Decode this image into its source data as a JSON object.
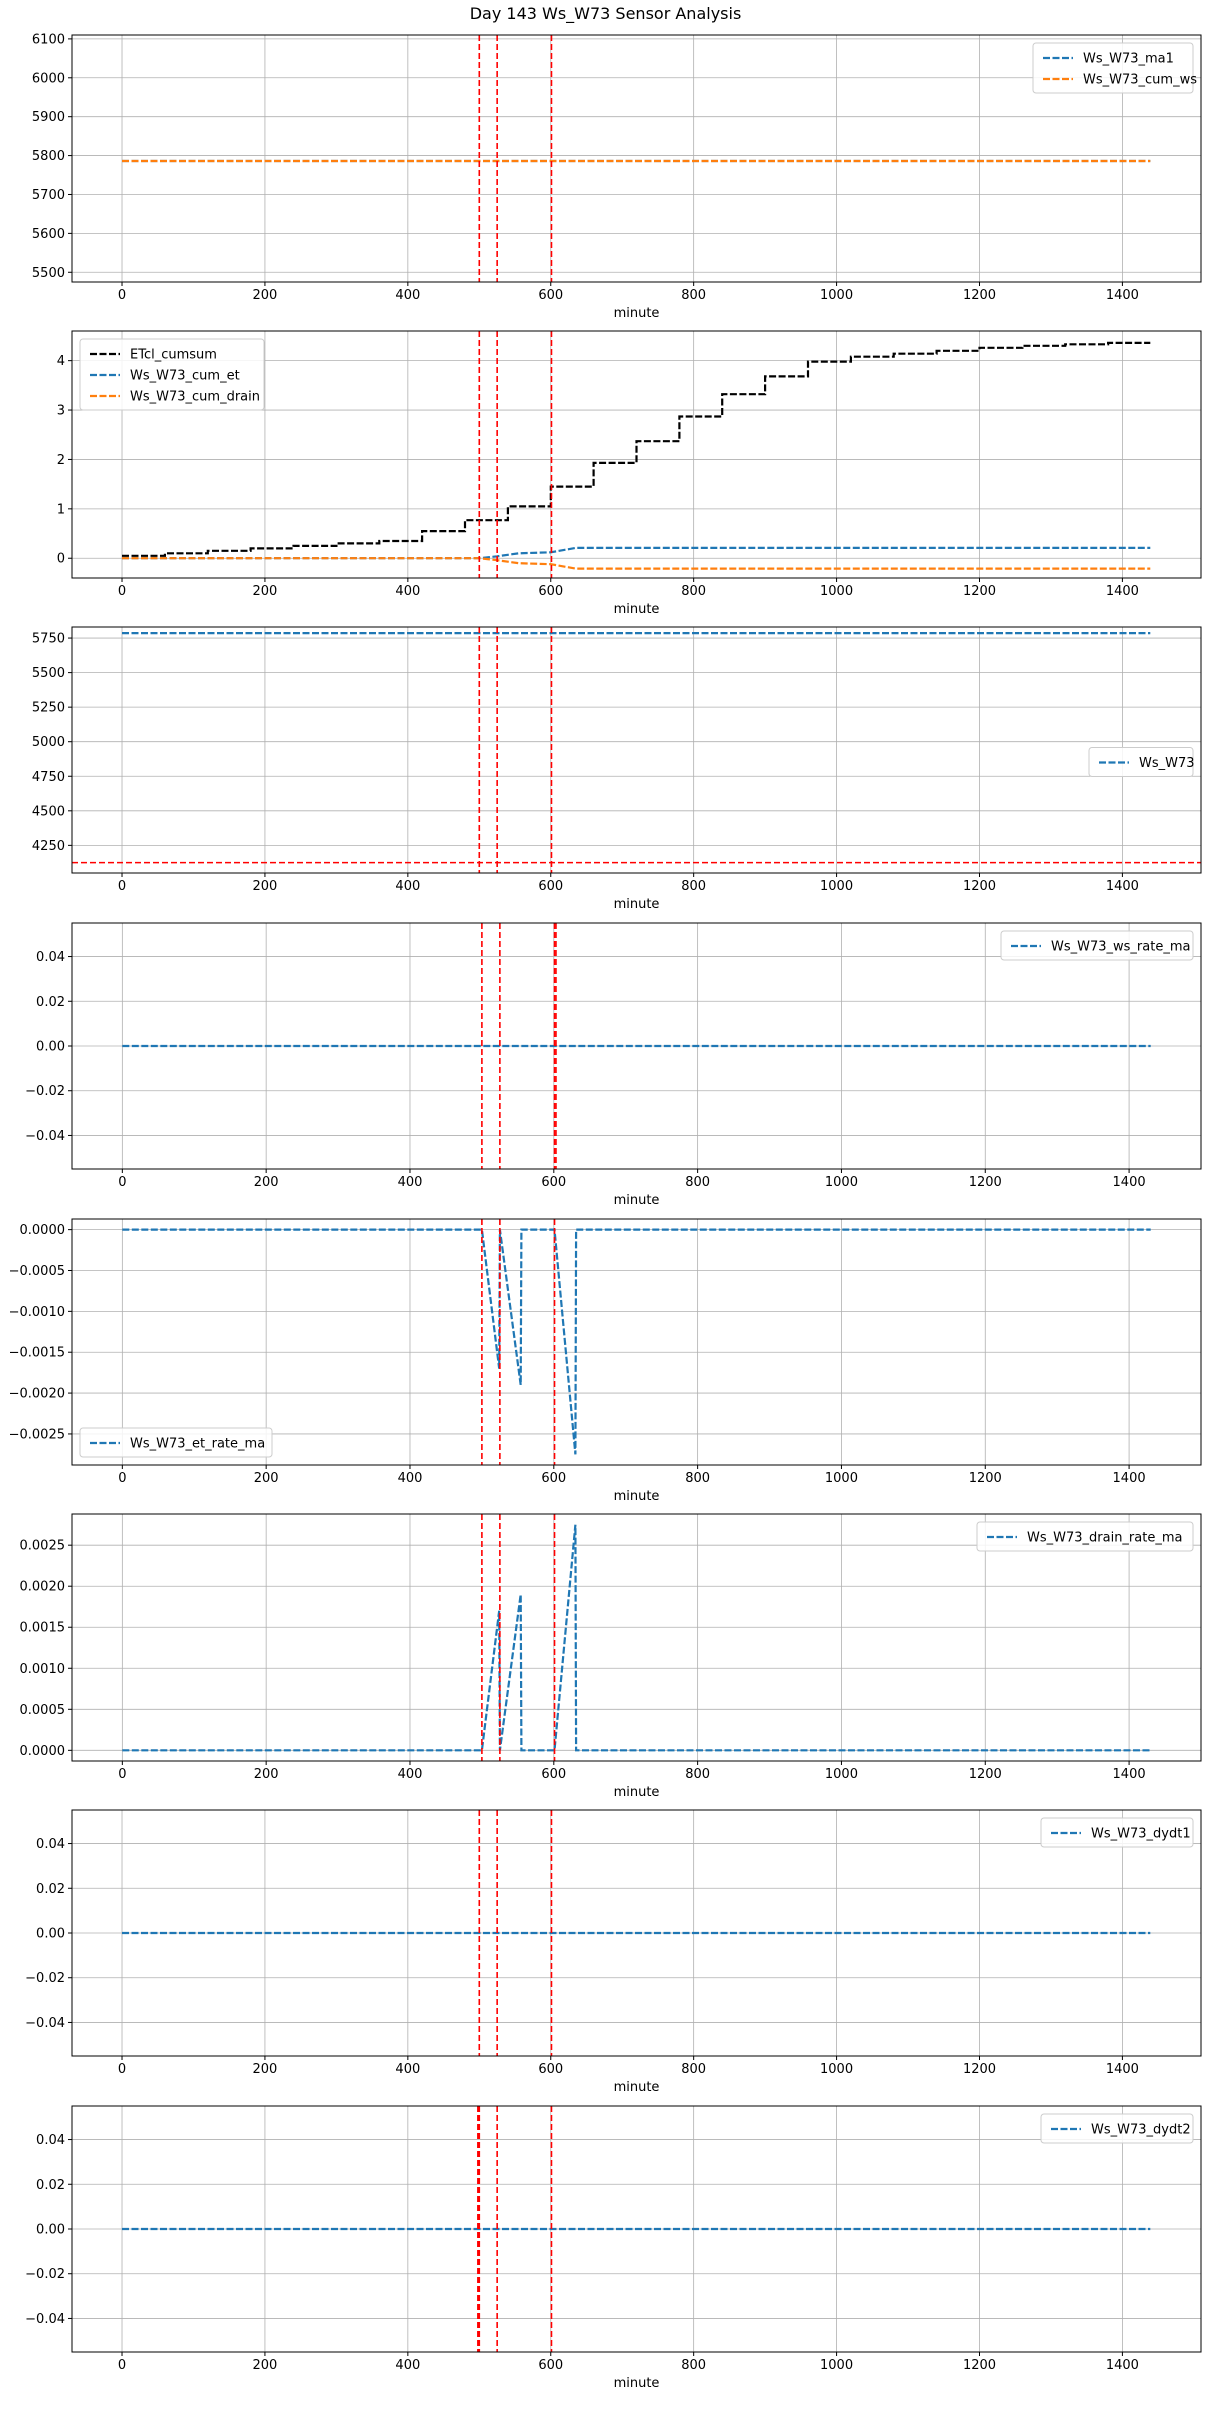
{
  "figure_title": "Day 143 Ws_W73 Sensor Analysis",
  "colors": {
    "blue": "#1f77b4",
    "orange": "#ff7f0e",
    "black": "#000000",
    "red": "#ff0000",
    "grid": "#b0b0b0"
  },
  "chart_data": [
    {
      "type": "line",
      "xlabel": "minute",
      "xlim": [
        -70,
        1510
      ],
      "ylim": [
        5475,
        6110
      ],
      "xticks": [
        0,
        200,
        400,
        600,
        800,
        1000,
        1200,
        1400
      ],
      "yticks": [
        5500,
        5600,
        5700,
        5800,
        5900,
        6000,
        6100
      ],
      "yfmt": 0,
      "grid": true,
      "legend": "top-right",
      "vlines": [
        500,
        525,
        601
      ],
      "series": [
        {
          "name": "Ws_W73_ma1",
          "color": "#1f77b4",
          "dash": true,
          "x": [
            0,
            1439
          ],
          "y": [
            5786,
            5786
          ]
        },
        {
          "name": "Ws_W73_cum_ws",
          "color": "#ff7f0e",
          "dash": true,
          "x": [
            0,
            1439
          ],
          "y": [
            5786,
            5786
          ]
        }
      ]
    },
    {
      "type": "line",
      "xlabel": "minute",
      "xlim": [
        -70,
        1510
      ],
      "ylim": [
        -0.4,
        4.6
      ],
      "xticks": [
        0,
        200,
        400,
        600,
        800,
        1000,
        1200,
        1400
      ],
      "yticks": [
        0,
        1,
        2,
        3,
        4
      ],
      "yfmt": 0,
      "grid": true,
      "legend": "top-left",
      "vlines": [
        500,
        525,
        601
      ],
      "series": [
        {
          "name": "ETcl_cumsum",
          "color": "#000000",
          "dash": true,
          "step": true,
          "x": [
            0,
            60,
            120,
            180,
            240,
            300,
            360,
            420,
            480,
            540,
            600,
            660,
            720,
            780,
            840,
            900,
            960,
            1020,
            1080,
            1140,
            1200,
            1260,
            1320,
            1380,
            1439
          ],
          "y": [
            0.05,
            0.1,
            0.15,
            0.2,
            0.25,
            0.3,
            0.35,
            0.55,
            0.77,
            1.05,
            1.45,
            1.93,
            2.37,
            2.87,
            3.32,
            3.68,
            3.98,
            4.08,
            4.14,
            4.2,
            4.26,
            4.3,
            4.33,
            4.36,
            4.36
          ]
        },
        {
          "name": "Ws_W73_cum_et",
          "color": "#1f77b4",
          "dash": true,
          "x": [
            0,
            500,
            525,
            555,
            600,
            635,
            1439
          ],
          "y": [
            0.0,
            0.0,
            0.04,
            0.1,
            0.12,
            0.21,
            0.21
          ]
        },
        {
          "name": "Ws_W73_cum_drain",
          "color": "#ff7f0e",
          "dash": true,
          "x": [
            0,
            500,
            525,
            555,
            600,
            635,
            1439
          ],
          "y": [
            0.0,
            0.0,
            -0.04,
            -0.1,
            -0.12,
            -0.21,
            -0.21
          ]
        }
      ]
    },
    {
      "type": "line",
      "xlabel": "minute",
      "xlim": [
        -70,
        1510
      ],
      "ylim": [
        4050,
        5830
      ],
      "xticks": [
        0,
        200,
        400,
        600,
        800,
        1000,
        1200,
        1400
      ],
      "yticks": [
        4250,
        4500,
        4750,
        5000,
        5250,
        5500,
        5750
      ],
      "yfmt": 0,
      "grid": true,
      "legend": "center-right",
      "vlines": [
        500,
        525,
        601
      ],
      "hlines": [
        4125
      ],
      "series": [
        {
          "name": "Ws_W73",
          "color": "#1f77b4",
          "dash": true,
          "x": [
            0,
            1439
          ],
          "y": [
            5786,
            5786
          ]
        }
      ]
    },
    {
      "type": "line",
      "xlabel": "minute",
      "xlim": [
        -70,
        1500
      ],
      "ylim": [
        -0.055,
        0.055
      ],
      "xticks": [
        0,
        200,
        400,
        600,
        800,
        1000,
        1200,
        1400
      ],
      "yticks": [
        -0.04,
        -0.02,
        0.0,
        0.02,
        0.04
      ],
      "yfmt": 2,
      "grid": true,
      "legend": "top-right",
      "vlines": [
        500,
        525,
        601,
        603
      ],
      "series": [
        {
          "name": "Ws_W73_ws_rate_ma",
          "color": "#1f77b4",
          "dash": true,
          "x": [
            0,
            1430
          ],
          "y": [
            0,
            0
          ]
        }
      ]
    },
    {
      "type": "line",
      "xlabel": "minute",
      "xlim": [
        -70,
        1500
      ],
      "ylim": [
        -0.00288,
        0.00013
      ],
      "xticks": [
        0,
        200,
        400,
        600,
        800,
        1000,
        1200,
        1400
      ],
      "yticks": [
        -0.0025,
        -0.002,
        -0.0015,
        -0.001,
        -0.0005,
        0.0
      ],
      "yfmt": 4,
      "grid": true,
      "legend": "bottom-left",
      "vlines": [
        500,
        525,
        601
      ],
      "series": [
        {
          "name": "Ws_W73_et_rate_ma",
          "color": "#1f77b4",
          "dash": true,
          "x": [
            0,
            499,
            500,
            524,
            525,
            554,
            555,
            600,
            601,
            630,
            631,
            1430
          ],
          "y": [
            0,
            0,
            0,
            -0.0017,
            0,
            -0.0019,
            0,
            0,
            0,
            -0.00275,
            0,
            0
          ]
        }
      ]
    },
    {
      "type": "line",
      "xlabel": "minute",
      "xlim": [
        -70,
        1500
      ],
      "ylim": [
        -0.00013,
        0.00288
      ],
      "xticks": [
        0,
        200,
        400,
        600,
        800,
        1000,
        1200,
        1400
      ],
      "yticks": [
        0.0,
        0.0005,
        0.001,
        0.0015,
        0.002,
        0.0025
      ],
      "yfmt": 4,
      "grid": true,
      "legend": "top-right",
      "vlines": [
        500,
        525,
        601
      ],
      "series": [
        {
          "name": "Ws_W73_drain_rate_ma",
          "color": "#1f77b4",
          "dash": true,
          "x": [
            0,
            499,
            500,
            524,
            525,
            554,
            555,
            600,
            601,
            630,
            631,
            1430
          ],
          "y": [
            0,
            0,
            0,
            0.0017,
            0,
            0.0019,
            0,
            0,
            0,
            0.00275,
            0,
            0
          ]
        }
      ]
    },
    {
      "type": "line",
      "xlabel": "minute",
      "xlim": [
        -70,
        1510
      ],
      "ylim": [
        -0.055,
        0.055
      ],
      "xticks": [
        0,
        200,
        400,
        600,
        800,
        1000,
        1200,
        1400
      ],
      "yticks": [
        -0.04,
        -0.02,
        0.0,
        0.02,
        0.04
      ],
      "yfmt": 2,
      "grid": true,
      "legend": "top-right",
      "vlines": [
        500,
        525,
        601
      ],
      "series": [
        {
          "name": "Ws_W73_dydt1",
          "color": "#1f77b4",
          "dash": true,
          "x": [
            0,
            1439
          ],
          "y": [
            0,
            0
          ]
        }
      ]
    },
    {
      "type": "line",
      "xlabel": "minute",
      "xlim": [
        -70,
        1510
      ],
      "ylim": [
        -0.055,
        0.055
      ],
      "xticks": [
        0,
        200,
        400,
        600,
        800,
        1000,
        1200,
        1400
      ],
      "yticks": [
        -0.04,
        -0.02,
        0.0,
        0.02,
        0.04
      ],
      "yfmt": 2,
      "grid": true,
      "legend": "top-right",
      "vlines": [
        498,
        500,
        525,
        601
      ],
      "series": [
        {
          "name": "Ws_W73_dydt2",
          "color": "#1f77b4",
          "dash": true,
          "x": [
            0,
            1439
          ],
          "y": [
            0,
            0
          ]
        }
      ]
    }
  ]
}
